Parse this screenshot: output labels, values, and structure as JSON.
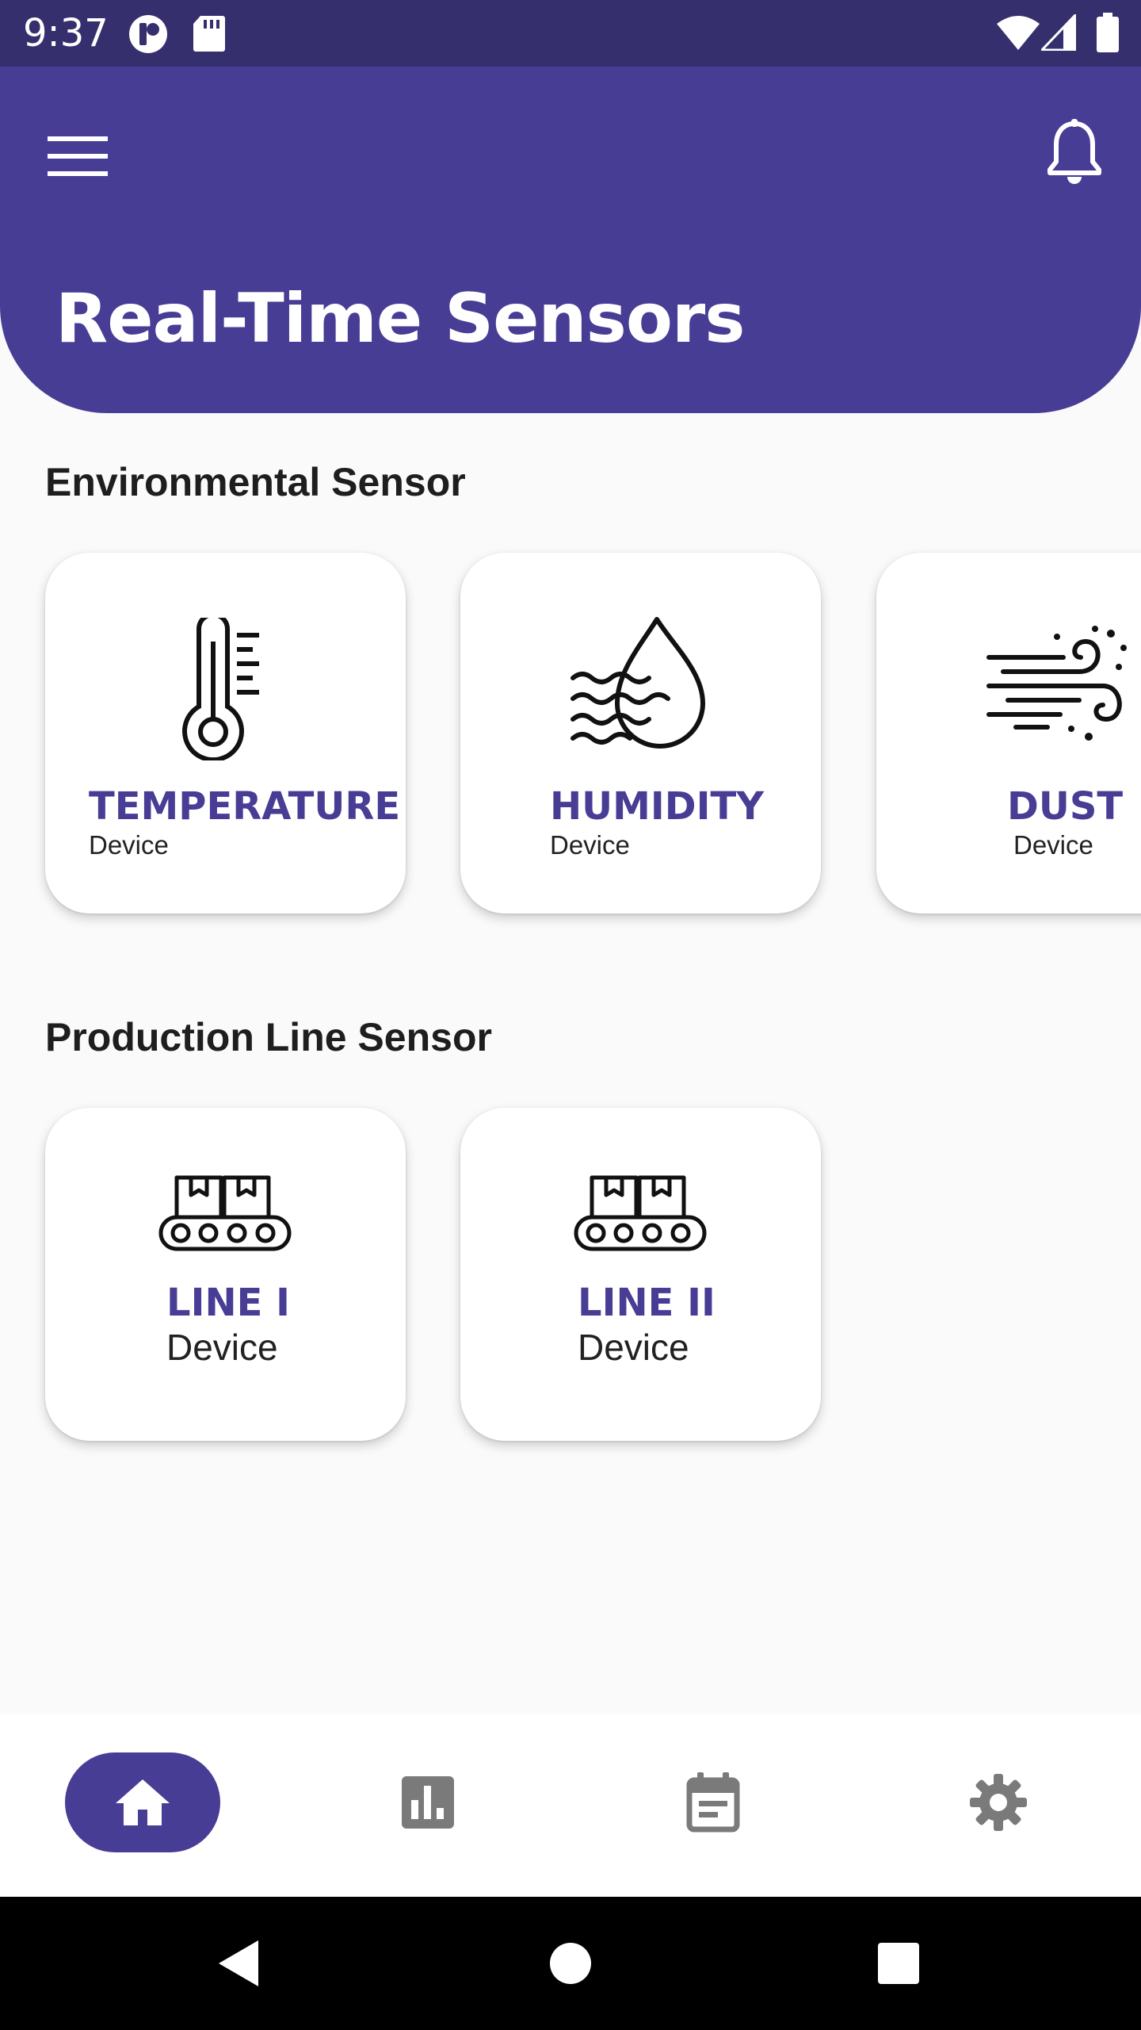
{
  "status_bar": {
    "time": "9:37",
    "left_icons": [
      "app-notification-icon",
      "sd-card-icon"
    ],
    "right_icons": [
      "wifi-icon",
      "cellular-signal-icon",
      "battery-icon"
    ]
  },
  "header": {
    "title": "Real-Time Sensors",
    "background_color": "#483d95",
    "menu_icon": "hamburger-menu-icon",
    "notification_icon": "bell-icon"
  },
  "environmental": {
    "heading": "Environmental Sensor",
    "cards": [
      {
        "title": "TEMPERATURE",
        "subtitle": "Device",
        "icon": "thermometer-icon"
      },
      {
        "title": "HUMIDITY",
        "subtitle": "Device",
        "icon": "water-drop-icon"
      },
      {
        "title": "DUST",
        "subtitle": "Device",
        "icon": "wind-icon"
      }
    ]
  },
  "production": {
    "heading": "Production Line Sensor",
    "cards": [
      {
        "title": "LINE I",
        "subtitle": "Device",
        "icon": "conveyor-belt-icon"
      },
      {
        "title": "LINE II",
        "subtitle": "Device",
        "icon": "conveyor-belt-icon"
      }
    ]
  },
  "bottom_nav": {
    "items": [
      {
        "icon": "home-icon",
        "active": true
      },
      {
        "icon": "bar-chart-icon",
        "active": false
      },
      {
        "icon": "calendar-icon",
        "active": false
      },
      {
        "icon": "gear-icon",
        "active": false
      }
    ],
    "active_color": "#483d95",
    "inactive_color": "#7a7a7a"
  },
  "system_nav": {
    "icons": [
      "back-triangle-icon",
      "home-circle-icon",
      "recents-square-icon"
    ]
  }
}
